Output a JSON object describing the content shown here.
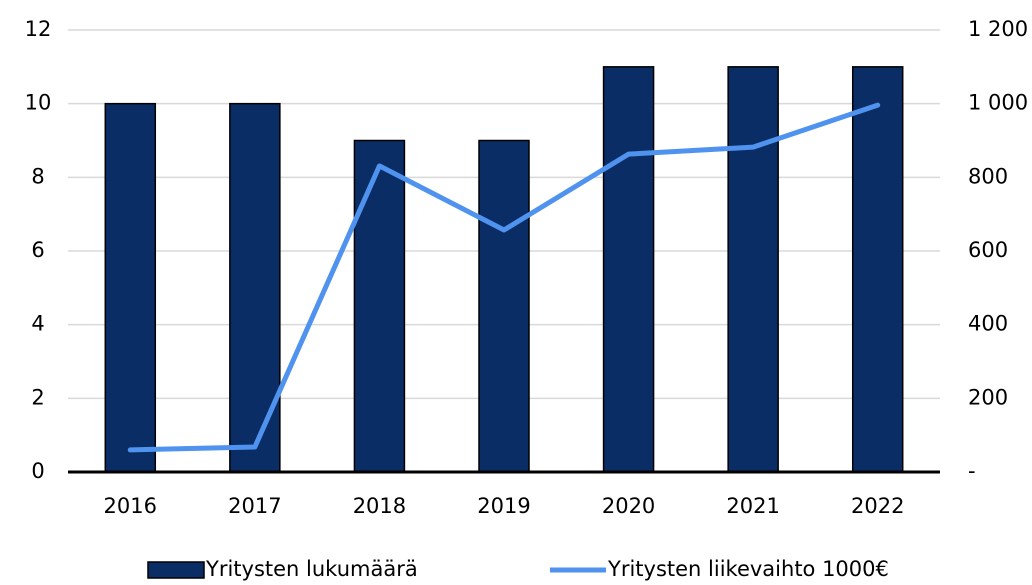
{
  "chart_data": {
    "type": "bar",
    "categories": [
      "2016",
      "2017",
      "2018",
      "2019",
      "2020",
      "2021",
      "2022"
    ],
    "series": [
      {
        "name": "Yritysten lukumäärä",
        "type": "bar",
        "color": "#0b2d66",
        "values": [
          10,
          10,
          9,
          9,
          11,
          11,
          11
        ]
      },
      {
        "name": "Yritysten liikevaihto 1000€",
        "type": "line",
        "axis": "y2",
        "color": "#4f93ef",
        "values": [
          60,
          68,
          831,
          657,
          863,
          882,
          996
        ]
      }
    ],
    "ylim": [
      0,
      12
    ],
    "yticks": [
      0,
      2,
      4,
      6,
      8,
      10,
      12
    ],
    "y2lim": [
      0,
      1200
    ],
    "y2ticks": [
      {
        "value": 0,
        "label": "-"
      },
      200,
      400,
      600,
      800,
      {
        "value": 1000,
        "label": "1 000"
      },
      {
        "value": 1200,
        "label": "1 200"
      }
    ],
    "grid": true,
    "legend": "bottom"
  }
}
